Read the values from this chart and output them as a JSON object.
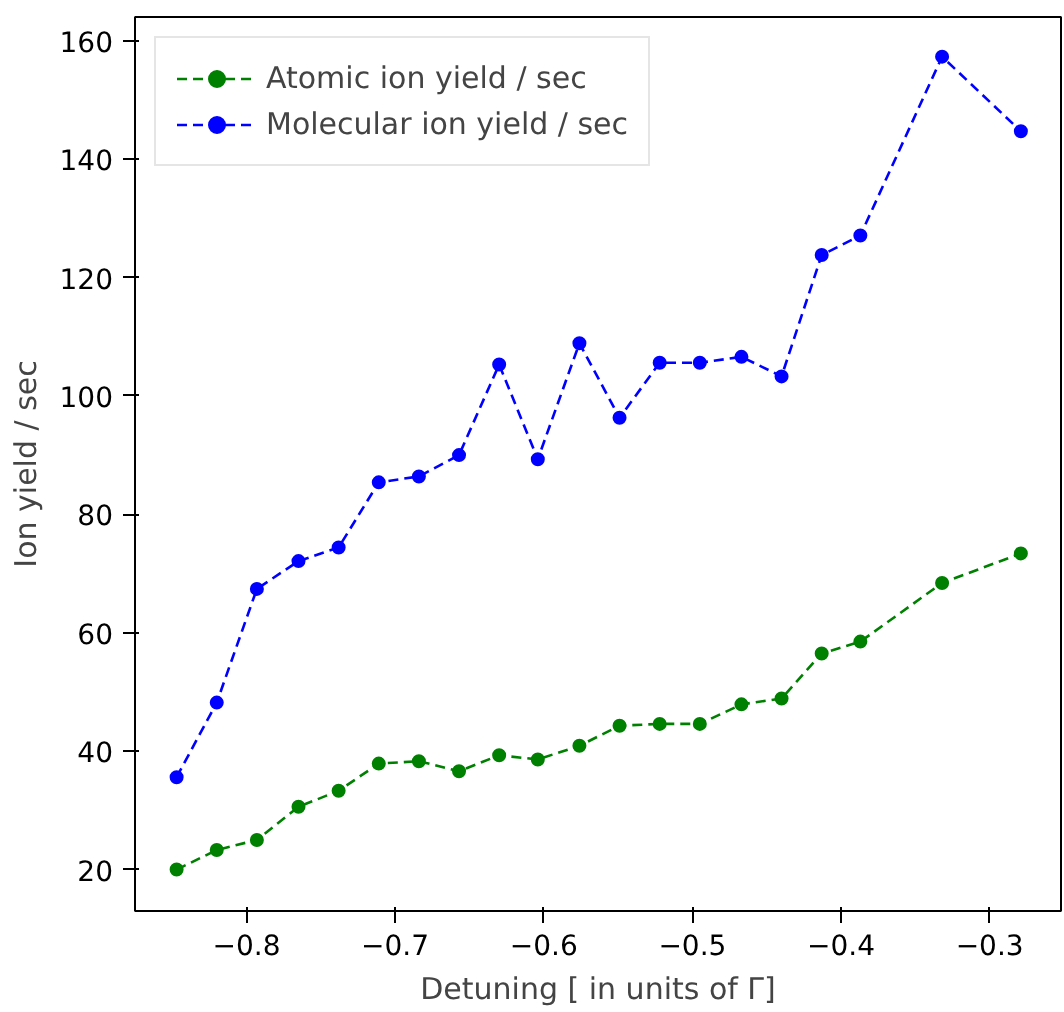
{
  "chart_data": {
    "type": "line",
    "xlabel": "Detuning [ in units of Γ]",
    "ylabel": "Ion yield / sec",
    "x": [
      -0.847,
      -0.82,
      -0.793,
      -0.765,
      -0.738,
      -0.711,
      -0.684,
      -0.657,
      -0.63,
      -0.604,
      -0.576,
      -0.549,
      -0.522,
      -0.495,
      -0.467,
      -0.44,
      -0.413,
      -0.387,
      -0.332,
      -0.279
    ],
    "series": [
      {
        "name": "Atomic ion yield / sec",
        "color": "#008000",
        "values": [
          20.0,
          23.3,
          25.0,
          30.6,
          33.3,
          37.9,
          38.3,
          36.6,
          39.3,
          38.6,
          40.9,
          44.3,
          44.6,
          44.6,
          47.9,
          48.9,
          56.5,
          58.5,
          68.4,
          73.4
        ]
      },
      {
        "name": "Molecular ion yield / sec",
        "color": "#0000ff",
        "values": [
          35.6,
          48.2,
          67.4,
          72.1,
          74.4,
          85.4,
          86.4,
          90.0,
          105.3,
          89.3,
          108.9,
          96.3,
          105.6,
          105.6,
          106.6,
          103.3,
          123.8,
          127.1,
          157.3,
          144.7
        ]
      }
    ],
    "xlim": [
      -0.875,
      -0.252
    ],
    "ylim": [
      13.0,
      164.0
    ],
    "xticks": [
      -0.8,
      -0.7,
      -0.6,
      -0.5,
      -0.4,
      -0.3
    ],
    "yticks": [
      20,
      40,
      60,
      80,
      100,
      120,
      140,
      160
    ],
    "grid": false,
    "legend": "top left",
    "marker": "circle",
    "line_style": "dashed"
  }
}
